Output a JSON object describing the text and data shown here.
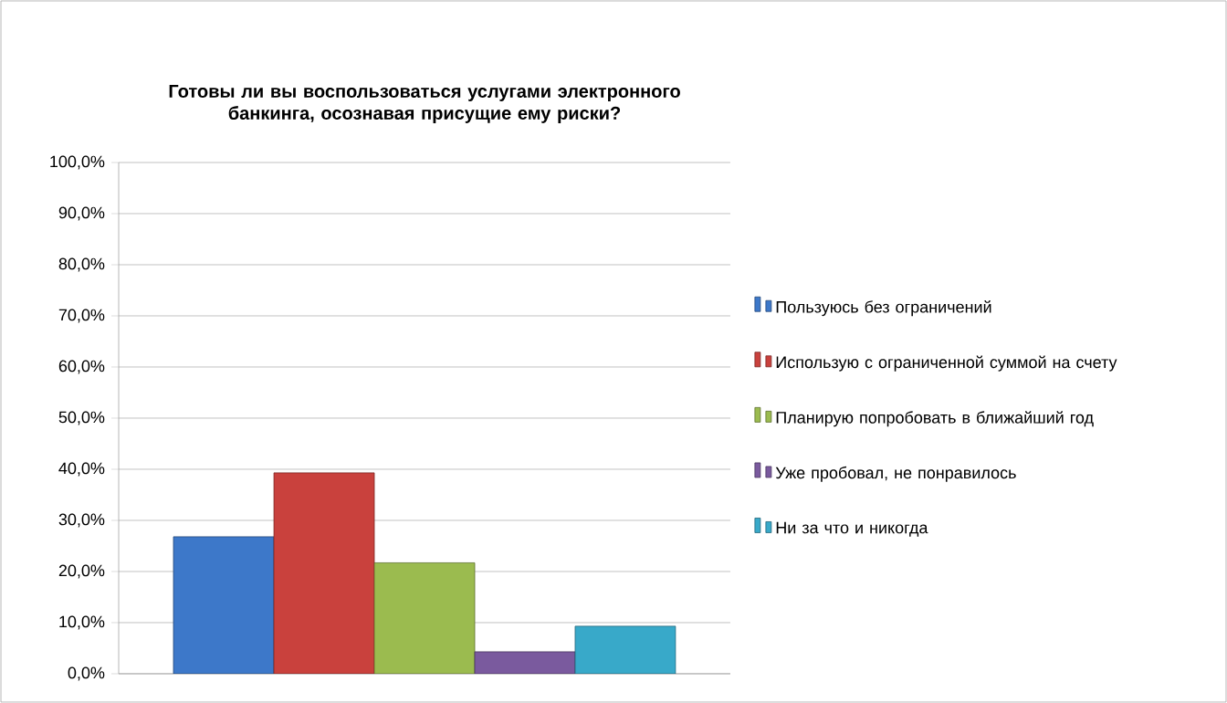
{
  "chart_data": {
    "type": "bar",
    "title": "Готовы ли вы воспользоваться услугами электронного банкинга, осознавая присущие ему риски?",
    "categories": [
      null
    ],
    "series": [
      {
        "name": "Пользуюсь без ограничений",
        "color": "#3d78c9",
        "values": [
          26.8
        ]
      },
      {
        "name": "Использую с ограниченной суммой на счету",
        "color": "#c9413d",
        "values": [
          39.3
        ]
      },
      {
        "name": "Планирую попробовать в ближайший год",
        "color": "#9bbb4f",
        "values": [
          21.7
        ]
      },
      {
        "name": "Уже пробовал, не понравилось",
        "color": "#7a5a9e",
        "values": [
          4.3
        ]
      },
      {
        "name": "Ни за что и никогда",
        "color": "#38a9c9",
        "values": [
          9.3
        ]
      }
    ],
    "ylim": [
      0,
      100
    ],
    "yticks": [
      {
        "value": 0,
        "label": "0,0%"
      },
      {
        "value": 10,
        "label": "10,0%"
      },
      {
        "value": 20,
        "label": "20,0%"
      },
      {
        "value": 30,
        "label": "30,0%"
      },
      {
        "value": 40,
        "label": "40,0%"
      },
      {
        "value": 50,
        "label": "50,0%"
      },
      {
        "value": 60,
        "label": "60,0%"
      },
      {
        "value": 70,
        "label": "70,0%"
      },
      {
        "value": 80,
        "label": "80,0%"
      },
      {
        "value": 90,
        "label": "90,0%"
      },
      {
        "value": 100,
        "label": "100,0%"
      }
    ],
    "grid": "y",
    "legend": "right"
  }
}
